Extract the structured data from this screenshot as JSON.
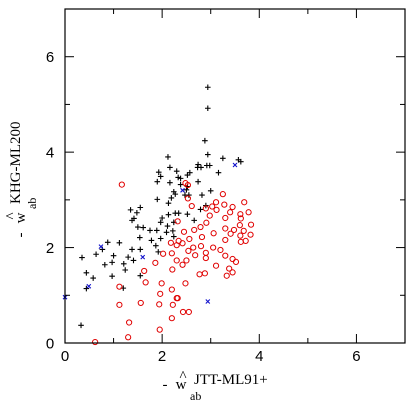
{
  "chart_data": {
    "type": "scatter",
    "xlim": [
      0,
      7
    ],
    "ylim": [
      0,
      7
    ],
    "x_ticks": [
      "0",
      "2",
      "4",
      "6"
    ],
    "y_ticks": [
      "0",
      "2",
      "4",
      "6"
    ],
    "grid": false,
    "xlabel": {
      "prefix": "- ",
      "symbol": "w",
      "hat": "^",
      "sub": "ab",
      "sup": "JTT-ML91+"
    },
    "ylabel": {
      "prefix": "- ",
      "symbol": "w",
      "hat": "^",
      "sub": "ab",
      "sup": "KHG-ML200"
    },
    "series": [
      {
        "marker": "plus",
        "color": "#000000",
        "points": [
          [
            2.94,
            5.36
          ],
          [
            2.94,
            4.92
          ],
          [
            2.88,
            4.24
          ],
          [
            2.94,
            3.95
          ],
          [
            2.12,
            3.9
          ],
          [
            3.25,
            3.87
          ],
          [
            3.57,
            3.84
          ],
          [
            3.62,
            3.8
          ],
          [
            2.74,
            3.74
          ],
          [
            2.92,
            3.72
          ],
          [
            2.98,
            3.72
          ],
          [
            2.16,
            3.68
          ],
          [
            2.73,
            3.68
          ],
          [
            2.8,
            3.68
          ],
          [
            2.3,
            3.6
          ],
          [
            1.93,
            3.58
          ],
          [
            2.57,
            3.57
          ],
          [
            3.16,
            3.57
          ],
          [
            2.52,
            3.52
          ],
          [
            1.97,
            3.49
          ],
          [
            2.33,
            3.47
          ],
          [
            2.38,
            3.45
          ],
          [
            1.9,
            3.38
          ],
          [
            2.74,
            3.38
          ],
          [
            2.16,
            3.36
          ],
          [
            2.38,
            3.32
          ],
          [
            2.52,
            3.28
          ],
          [
            2.5,
            3.21
          ],
          [
            3.0,
            3.19
          ],
          [
            2.24,
            3.17
          ],
          [
            2.27,
            3.12
          ],
          [
            2.47,
            3.1
          ],
          [
            2.55,
            3.1
          ],
          [
            2.82,
            3.1
          ],
          [
            2.19,
            3.04
          ],
          [
            1.9,
            3.01
          ],
          [
            2.13,
            2.93
          ],
          [
            2.9,
            2.88
          ],
          [
            1.55,
            2.84
          ],
          [
            2.79,
            2.8
          ],
          [
            1.35,
            2.79
          ],
          [
            1.48,
            2.73
          ],
          [
            2.27,
            2.72
          ],
          [
            2.34,
            2.72
          ],
          [
            2.13,
            2.69
          ],
          [
            2.52,
            2.7
          ],
          [
            1.42,
            2.61
          ],
          [
            2.0,
            2.62
          ],
          [
            1.38,
            2.57
          ],
          [
            2.66,
            2.57
          ],
          [
            1.97,
            2.53
          ],
          [
            2.24,
            2.53
          ],
          [
            2.11,
            2.45
          ],
          [
            1.5,
            2.43
          ],
          [
            1.61,
            2.42
          ],
          [
            2.22,
            2.35
          ],
          [
            1.75,
            2.36
          ],
          [
            1.89,
            2.36
          ],
          [
            2.09,
            2.32
          ],
          [
            2.24,
            2.23
          ],
          [
            1.54,
            2.21
          ],
          [
            1.97,
            2.19
          ],
          [
            1.12,
            2.1
          ],
          [
            0.88,
            2.11
          ],
          [
            1.78,
            2.15
          ],
          [
            1.87,
            2.04
          ],
          [
            0.77,
            1.96
          ],
          [
            1.38,
            1.96
          ],
          [
            1.55,
            1.96
          ],
          [
            1.92,
            1.91
          ],
          [
            0.64,
            1.86
          ],
          [
            1.0,
            1.83
          ],
          [
            0.35,
            1.79
          ],
          [
            1.3,
            1.8
          ],
          [
            1.41,
            1.73
          ],
          [
            0.97,
            1.69
          ],
          [
            1.21,
            1.66
          ],
          [
            0.82,
            1.64
          ],
          [
            1.24,
            1.53
          ],
          [
            0.44,
            1.47
          ],
          [
            1.55,
            1.41
          ],
          [
            0.97,
            1.4
          ],
          [
            0.58,
            1.36
          ],
          [
            0.44,
            1.14
          ],
          [
            1.2,
            1.15
          ],
          [
            0.33,
            0.37
          ]
        ]
      },
      {
        "marker": "circle",
        "color": "#e00000",
        "points": [
          [
            2.48,
            3.35
          ],
          [
            2.53,
            3.31
          ],
          [
            1.17,
            3.32
          ],
          [
            3.25,
            3.12
          ],
          [
            2.53,
            3.03
          ],
          [
            3.69,
            2.95
          ],
          [
            3.11,
            2.95
          ],
          [
            3.28,
            2.9
          ],
          [
            2.61,
            2.87
          ],
          [
            3.03,
            2.86
          ],
          [
            3.45,
            2.85
          ],
          [
            2.9,
            2.82
          ],
          [
            3.12,
            2.79
          ],
          [
            3.4,
            2.74
          ],
          [
            3.78,
            2.74
          ],
          [
            3.61,
            2.7
          ],
          [
            2.98,
            2.67
          ],
          [
            3.3,
            2.62
          ],
          [
            3.62,
            2.61
          ],
          [
            2.32,
            2.55
          ],
          [
            2.91,
            2.52
          ],
          [
            3.83,
            2.48
          ],
          [
            3.6,
            2.47
          ],
          [
            2.79,
            2.43
          ],
          [
            3.3,
            2.4
          ],
          [
            3.48,
            2.37
          ],
          [
            2.66,
            2.37
          ],
          [
            3.68,
            2.35
          ],
          [
            2.45,
            2.33
          ],
          [
            3.06,
            2.3
          ],
          [
            3.41,
            2.29
          ],
          [
            3.82,
            2.27
          ],
          [
            3.61,
            2.25
          ],
          [
            2.82,
            2.22
          ],
          [
            2.56,
            2.18
          ],
          [
            3.3,
            2.16
          ],
          [
            2.34,
            2.14
          ],
          [
            3.72,
            2.14
          ],
          [
            3.62,
            2.12
          ],
          [
            2.18,
            2.1
          ],
          [
            2.42,
            2.09
          ],
          [
            2.3,
            2.05
          ],
          [
            2.8,
            2.03
          ],
          [
            2.64,
            2.0
          ],
          [
            3.05,
            2.0
          ],
          [
            3.2,
            1.95
          ],
          [
            2.54,
            1.93
          ],
          [
            2.9,
            1.89
          ],
          [
            2.2,
            1.88
          ],
          [
            2.02,
            1.87
          ],
          [
            2.68,
            1.84
          ],
          [
            3.3,
            1.83
          ],
          [
            2.9,
            1.78
          ],
          [
            3.45,
            1.76
          ],
          [
            2.5,
            1.73
          ],
          [
            2.3,
            1.73
          ],
          [
            3.52,
            1.7
          ],
          [
            1.86,
            1.68
          ],
          [
            2.42,
            1.64
          ],
          [
            3.11,
            1.62
          ],
          [
            3.38,
            1.56
          ],
          [
            2.21,
            1.54
          ],
          [
            1.63,
            1.51
          ],
          [
            3.45,
            1.48
          ],
          [
            2.88,
            1.46
          ],
          [
            2.77,
            1.44
          ],
          [
            3.33,
            1.41
          ],
          [
            1.66,
            1.27
          ],
          [
            1.99,
            1.25
          ],
          [
            2.48,
            1.25
          ],
          [
            1.12,
            1.18
          ],
          [
            2.2,
            1.12
          ],
          [
            1.96,
            1.03
          ],
          [
            2.3,
            0.94
          ],
          [
            2.32,
            0.94
          ],
          [
            1.56,
            0.84
          ],
          [
            1.94,
            0.81
          ],
          [
            2.22,
            0.8
          ],
          [
            1.12,
            0.8
          ],
          [
            2.55,
            0.65
          ],
          [
            2.43,
            0.65
          ],
          [
            2.2,
            0.52
          ],
          [
            1.32,
            0.43
          ],
          [
            1.95,
            0.28
          ],
          [
            1.3,
            0.12
          ],
          [
            0.62,
            0.02
          ]
        ]
      },
      {
        "marker": "cross",
        "color": "#1010cc",
        "points": [
          [
            2.42,
            3.2
          ],
          [
            3.5,
            3.73
          ],
          [
            0.74,
            2.02
          ],
          [
            1.6,
            1.8
          ],
          [
            0.49,
            1.19
          ],
          [
            0.0,
            0.96
          ],
          [
            2.94,
            0.87
          ]
        ]
      }
    ]
  }
}
